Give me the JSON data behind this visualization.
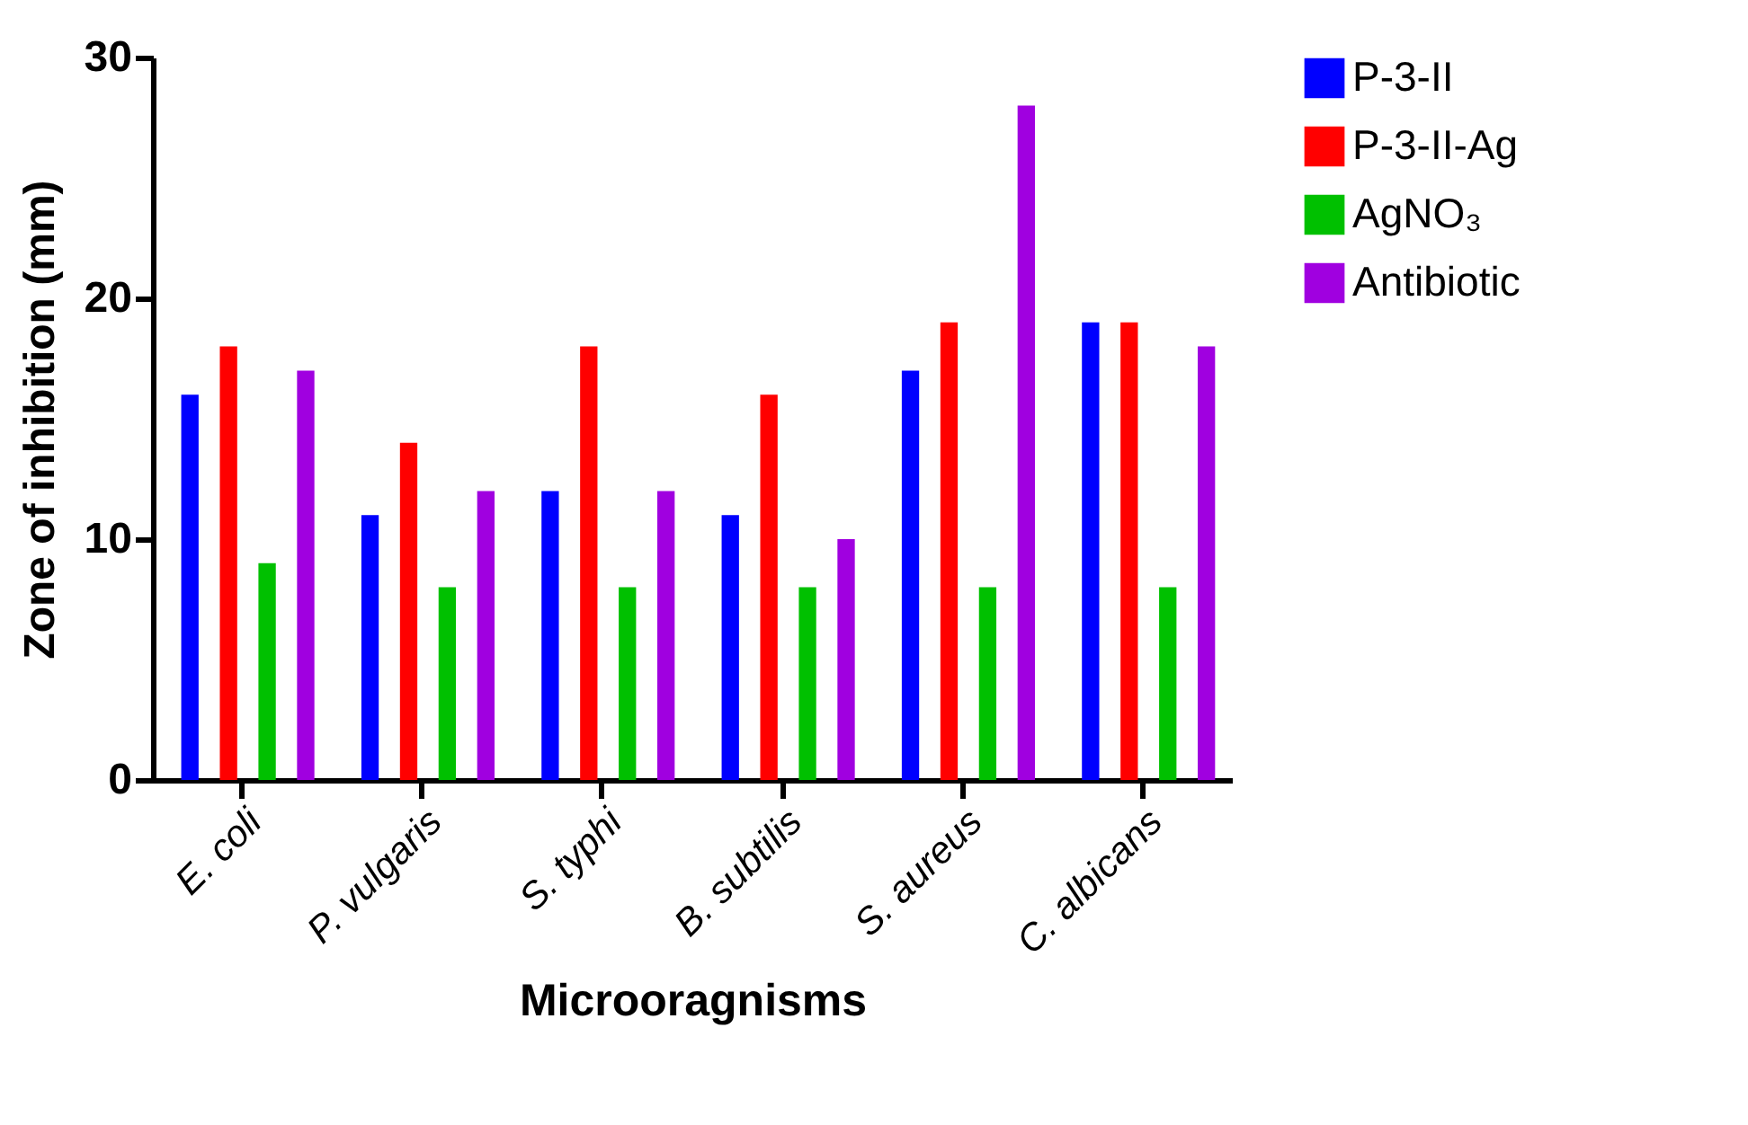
{
  "chart_data": {
    "type": "bar",
    "xlabel": "Microoragnisms",
    "ylabel": "Zone of inhibition (mm)",
    "categories": [
      "E. coli",
      "P. vulgaris",
      "S. typhi",
      "B. subtilis",
      "S. aureus",
      "C. albicans"
    ],
    "series": [
      {
        "name": "P-3-II",
        "color": "#0000ff",
        "values": [
          16,
          11,
          12,
          11,
          17,
          19
        ]
      },
      {
        "name": "P-3-II-Ag",
        "color": "#ff0000",
        "values": [
          18,
          14,
          18,
          16,
          19,
          19
        ]
      },
      {
        "name": "AgNO₃",
        "color": "#00c000",
        "values": [
          9,
          8,
          8,
          8,
          8,
          8
        ]
      },
      {
        "name": "Antibiotic",
        "color": "#a000e0",
        "values": [
          17,
          12,
          12,
          10,
          28,
          18
        ]
      }
    ],
    "ylim": [
      0,
      30
    ],
    "yticks": [
      0,
      10,
      20,
      30
    ],
    "grid": false,
    "legend": "top right"
  }
}
